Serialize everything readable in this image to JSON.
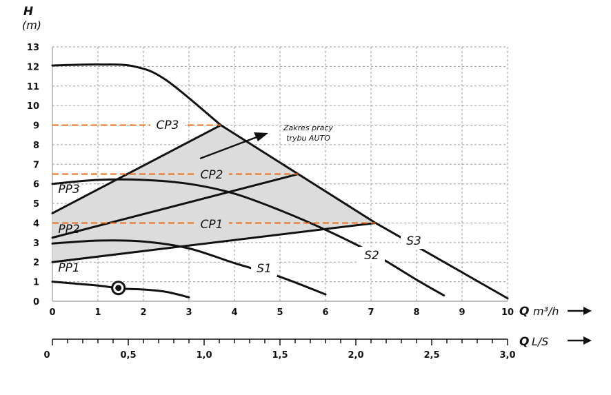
{
  "chart_data": {
    "type": "line",
    "y_axis": {
      "title": "H",
      "unit": "(m)",
      "ticks": [
        0,
        1,
        2,
        3,
        4,
        5,
        6,
        7,
        8,
        9,
        10,
        11,
        12,
        13
      ],
      "ylim": [
        0,
        13
      ]
    },
    "x_axis": {
      "title": "Q",
      "unit": "m³/h",
      "ticks": [
        0,
        1,
        2,
        3,
        4,
        5,
        6,
        7,
        8,
        9,
        10
      ],
      "xlim": [
        0,
        10
      ]
    },
    "x_axis2": {
      "title": "Q",
      "unit": "L/S",
      "ticks": [
        "0",
        "0,5",
        "1,0",
        "1,5",
        "2,0",
        "2,5",
        "3,0"
      ],
      "values": [
        0,
        0.5,
        1.0,
        1.5,
        2.0,
        2.5,
        3.0
      ],
      "xlim": [
        0,
        3
      ]
    },
    "grid": true,
    "region": {
      "label_line1": "Zakres pracy",
      "label_line2": "trybu AUTO",
      "fill": "#dcdcdc",
      "polygon": [
        [
          0,
          2.0
        ],
        [
          0,
          4.5
        ],
        [
          3.7,
          9.0
        ],
        [
          7.1,
          4.0
        ]
      ]
    },
    "series": [
      {
        "name": "S1",
        "points": [
          [
            0,
            2.95
          ],
          [
            1,
            3.1
          ],
          [
            2,
            3.05
          ],
          [
            3,
            2.7
          ],
          [
            4,
            1.95
          ],
          [
            5,
            1.25
          ],
          [
            6,
            0.35
          ]
        ]
      },
      {
        "name": "S2",
        "points": [
          [
            0,
            6.0
          ],
          [
            1,
            6.2
          ],
          [
            2,
            6.2
          ],
          [
            3,
            6.0
          ],
          [
            4,
            5.5
          ],
          [
            5,
            4.65
          ],
          [
            6,
            3.65
          ],
          [
            7,
            2.5
          ],
          [
            8,
            1.1
          ],
          [
            8.6,
            0.3
          ]
        ]
      },
      {
        "name": "S3",
        "points": [
          [
            0,
            12.05
          ],
          [
            1,
            12.1
          ],
          [
            1.8,
            12.0
          ],
          [
            2.5,
            11.3
          ],
          [
            3.7,
            9.0
          ],
          [
            7.1,
            4.0
          ],
          [
            10,
            0.15
          ]
        ]
      },
      {
        "name": "PP1",
        "points": [
          [
            0,
            2.0
          ],
          [
            7.1,
            4.0
          ]
        ]
      },
      {
        "name": "PP2",
        "points": [
          [
            0,
            3.25
          ],
          [
            5.4,
            6.5
          ]
        ]
      },
      {
        "name": "PP3",
        "points": [
          [
            0,
            4.5
          ],
          [
            3.7,
            9.0
          ]
        ]
      },
      {
        "name": "CP1",
        "points": [
          [
            0,
            4.0
          ],
          [
            7.1,
            4.0
          ]
        ],
        "dashed": true
      },
      {
        "name": "CP2",
        "points": [
          [
            0,
            6.5
          ],
          [
            5.4,
            6.5
          ]
        ],
        "dashed": true
      },
      {
        "name": "CP3",
        "points": [
          [
            0,
            9.0
          ],
          [
            3.7,
            9.0
          ]
        ],
        "dashed": true
      },
      {
        "name": "",
        "points": [
          [
            0,
            1.0
          ],
          [
            1,
            0.8
          ],
          [
            1.5,
            0.65
          ],
          [
            2,
            0.6
          ],
          [
            2.5,
            0.48
          ],
          [
            3,
            0.2
          ]
        ]
      }
    ],
    "marker": {
      "x": 1.45,
      "y": 0.68
    },
    "colors": {
      "curve": "#111111",
      "cp_dash": "#e07020",
      "grid": "#9a9a9a",
      "region": "#dcdcdc"
    }
  }
}
